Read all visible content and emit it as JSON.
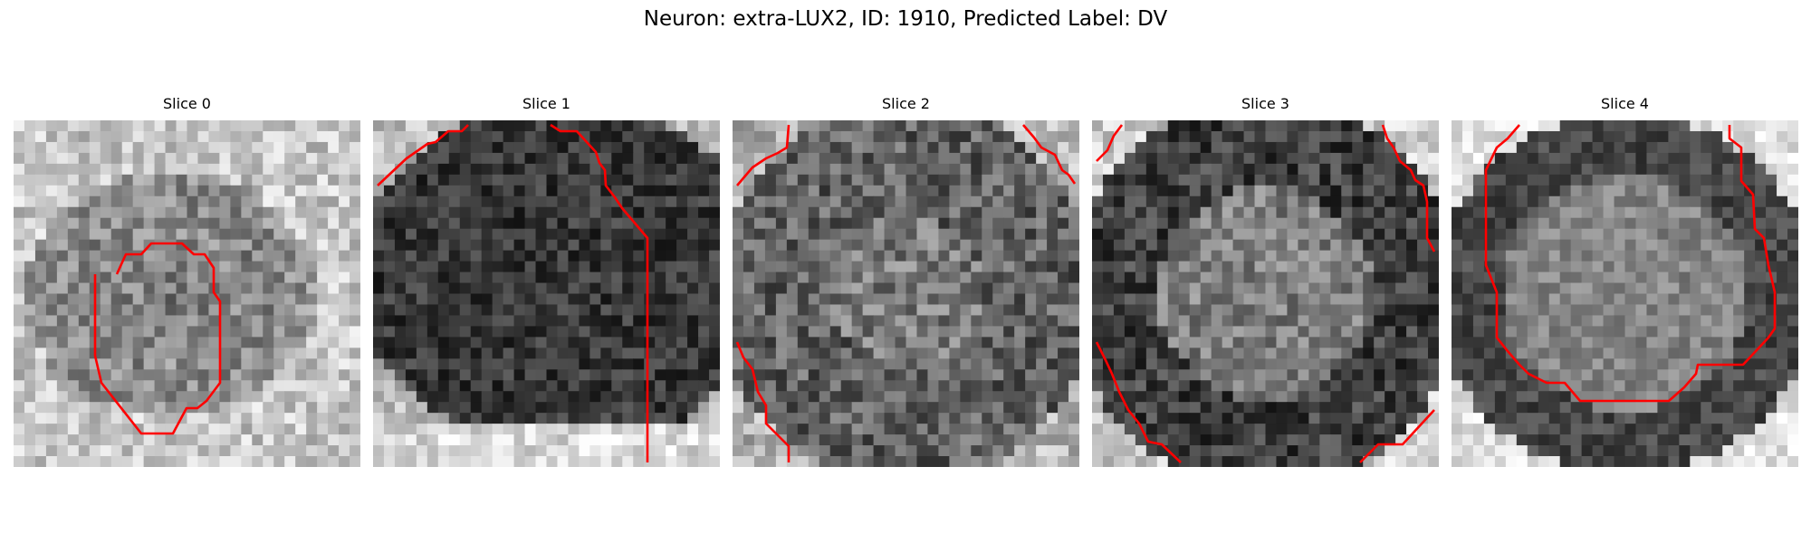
{
  "figure": {
    "title": "Neuron: extra-LUX2, ID: 1910, Predicted Label: DV",
    "contour_color": "#ff0000",
    "colormap": "grayscale",
    "panels": [
      {
        "title": "Slice 0",
        "mean_gray": 0.62
      },
      {
        "title": "Slice 1",
        "mean_gray": 0.28
      },
      {
        "title": "Slice 2",
        "mean_gray": 0.4
      },
      {
        "title": "Slice 3",
        "mean_gray": 0.38
      },
      {
        "title": "Slice 4",
        "mean_gray": 0.45
      }
    ]
  }
}
